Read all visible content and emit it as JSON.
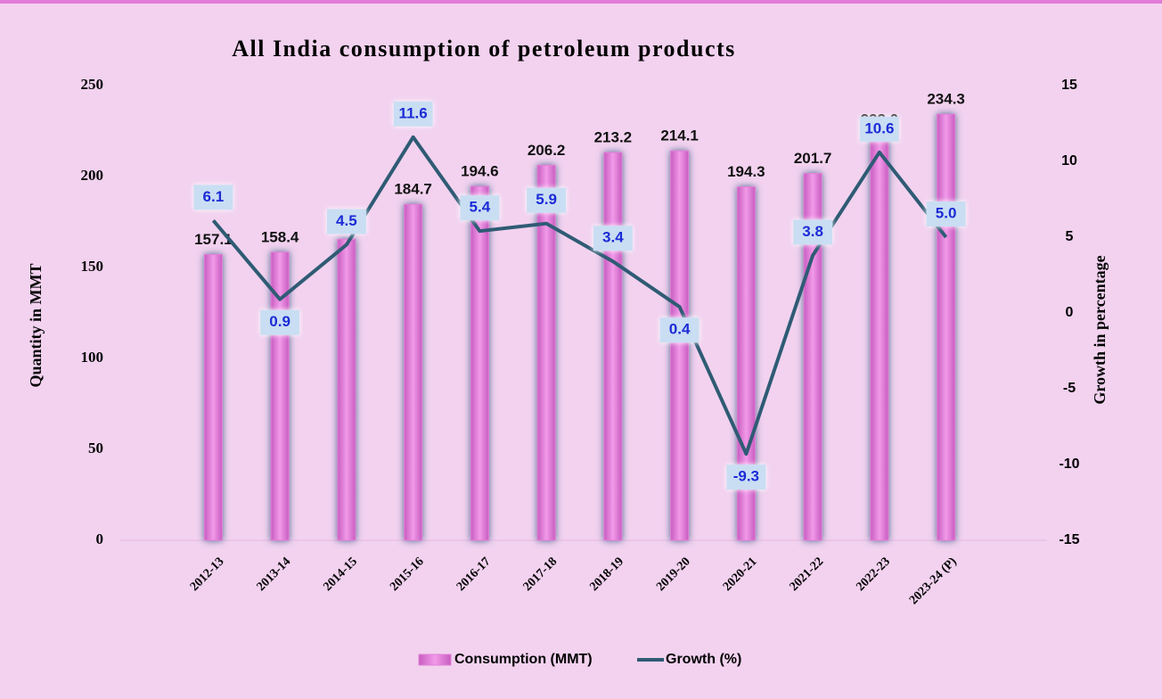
{
  "chart_data": {
    "type": "bar",
    "title": "All India consumption of petroleum products",
    "ylabel": "Quantity in MMT",
    "y2label": "Growth in percentage",
    "categories": [
      "2012-13",
      "2013-14",
      "2014-15",
      "2015-16",
      "2016-17",
      "2017-18",
      "2018-19",
      "2019-20",
      "2020-21",
      "2021-22",
      "2022-23",
      "2023-24 (P)"
    ],
    "series": [
      {
        "name": "Consumption (MMT)",
        "type": "bar",
        "color": "#e07fd6",
        "values": [
          157.1,
          158.4,
          165.5,
          184.7,
          194.6,
          206.2,
          213.2,
          214.1,
          194.3,
          201.7,
          223.0,
          234.3
        ],
        "value_labels": [
          "157.1",
          "158.4",
          "165.5",
          "184.7",
          "194.6",
          "206.2",
          "213.2",
          "214.1",
          "194.3",
          "201.7",
          "223.0",
          "234.3"
        ]
      },
      {
        "name": "Growth (%)",
        "type": "line",
        "axis": "y2",
        "color": "#2f5b74",
        "values": [
          6.1,
          0.9,
          4.5,
          11.6,
          5.4,
          5.9,
          3.4,
          0.4,
          -9.3,
          3.8,
          10.6,
          5.0
        ],
        "value_labels": [
          "6.1",
          "0.9",
          "4.5",
          "11.6",
          "5.4",
          "5.9",
          "3.4",
          "0.4",
          "-9.3",
          "3.8",
          "10.6",
          "5.0"
        ]
      }
    ],
    "ylim": [
      0,
      250
    ],
    "yticks": [
      0,
      50,
      100,
      150,
      200,
      250
    ],
    "y2lim": [
      -15,
      15
    ],
    "y2ticks": [
      -15,
      -10,
      -5,
      0,
      5,
      10,
      15
    ],
    "legend": "bottom"
  }
}
